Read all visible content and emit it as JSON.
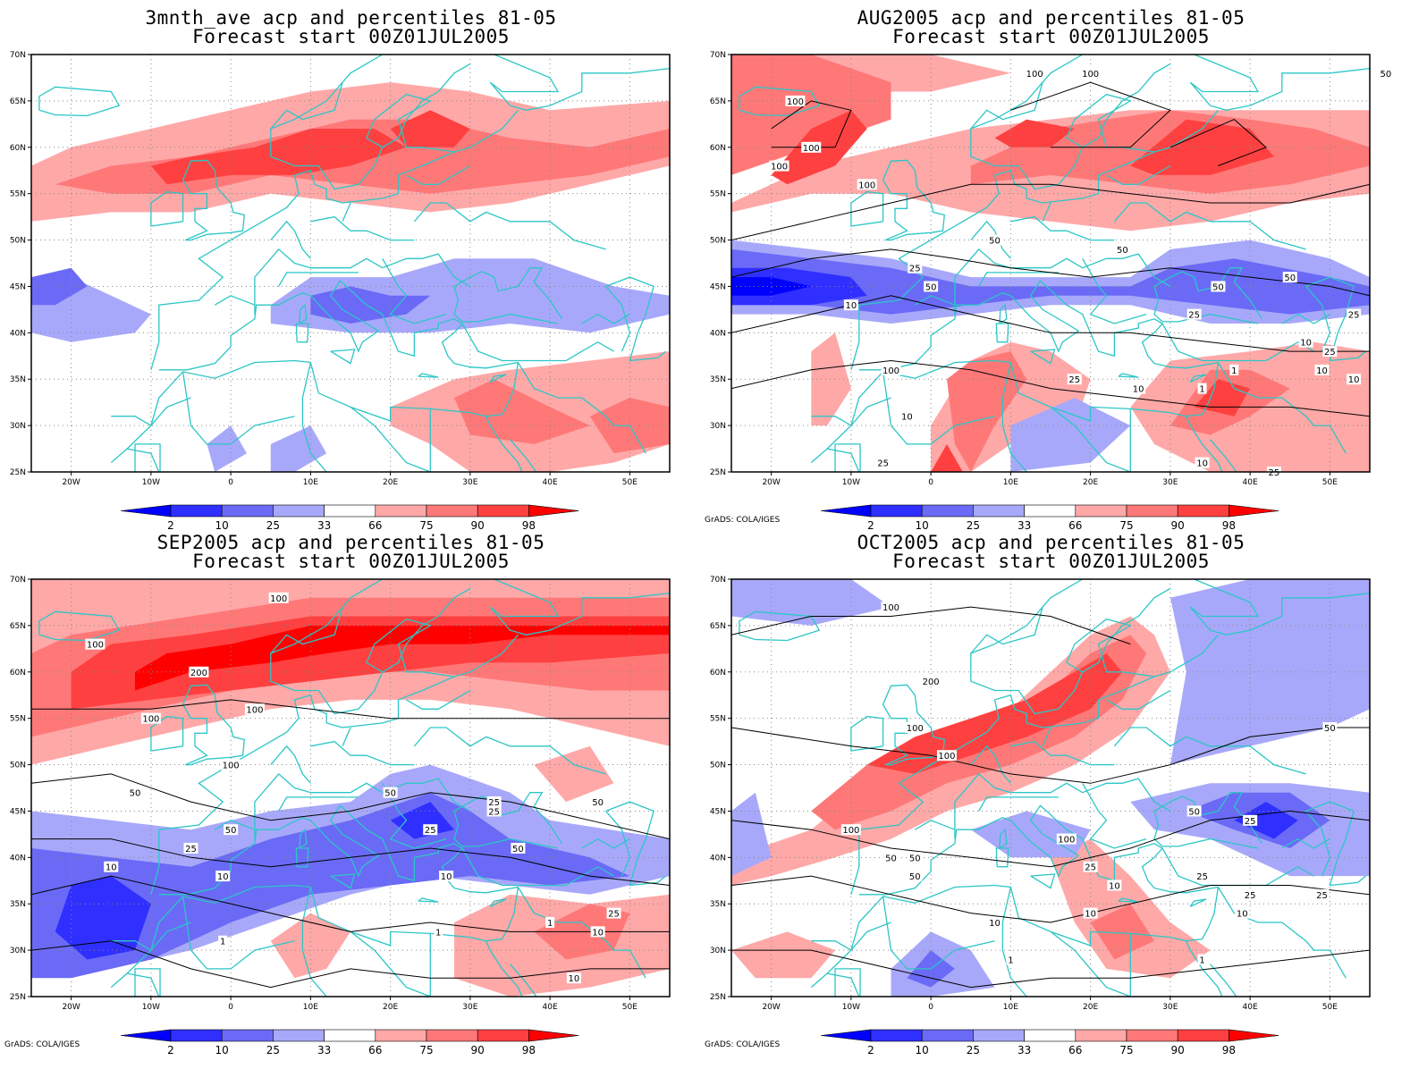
{
  "credit": "GrADS: COLA/IGES",
  "lat_labels": [
    "70N",
    "65N",
    "60N",
    "55N",
    "50N",
    "45N",
    "40N",
    "35N",
    "30N",
    "25N"
  ],
  "lon_labels": [
    "20W",
    "10W",
    "0",
    "10E",
    "20E",
    "30E",
    "40E",
    "50E"
  ],
  "colorbar": {
    "labels": [
      "2",
      "10",
      "25",
      "33",
      "66",
      "75",
      "90",
      "98"
    ],
    "colors": [
      "#0000ff",
      "#2f2fff",
      "#6a6af7",
      "#a8a8fa",
      "#ffffff",
      "#ffa8a8",
      "#ff7878",
      "#ff4040",
      "#ff0000"
    ]
  },
  "palette": {
    "coast": "#2cc6c6",
    "frame": "#000000",
    "grid": "#888888",
    "contour": "#000000"
  },
  "panels": [
    {
      "title1": "3mnth_ave acp and percentiles 81-05",
      "title2": "Forecast start 00Z01JUL2005",
      "credit": "",
      "contour_labels": []
    },
    {
      "title1": "AUG2005 acp and percentiles 81-05",
      "title2": "Forecast start 00Z01JUL2005",
      "credit": "GrADS: COLA/IGES",
      "contour_labels": [
        "100",
        "100",
        "100",
        "100",
        "100",
        "50",
        "50",
        "25",
        "25",
        "10",
        "100",
        "50",
        "50",
        "25",
        "50",
        "25",
        "10",
        "25",
        "1",
        "1",
        "10",
        "10",
        "10",
        "10",
        "25",
        "10",
        "25",
        "50",
        "100"
      ]
    },
    {
      "title1": "SEP2005 acp and percentiles 81-05",
      "title2": "Forecast start 00Z01JUL2005",
      "credit": "GrADS: COLA/IGES",
      "contour_labels": [
        "100",
        "100",
        "200",
        "100",
        "100",
        "50",
        "50",
        "25",
        "10",
        "10",
        "1",
        "100",
        "50",
        "25",
        "25",
        "25",
        "50",
        "10",
        "1",
        "50",
        "25",
        "1",
        "10",
        "10"
      ]
    },
    {
      "title1": "OCT2005 acp and percentiles 81-05",
      "title2": "Forecast start 00Z01JUL2005",
      "credit": "GrADS: COLA/IGES",
      "contour_labels": [
        "100",
        "200",
        "100",
        "100",
        "100",
        "100",
        "50",
        "50",
        "25",
        "50",
        "25",
        "25",
        "50",
        "25",
        "10",
        "10",
        "10",
        "1",
        "1",
        "50",
        "10",
        "25"
      ]
    }
  ]
}
